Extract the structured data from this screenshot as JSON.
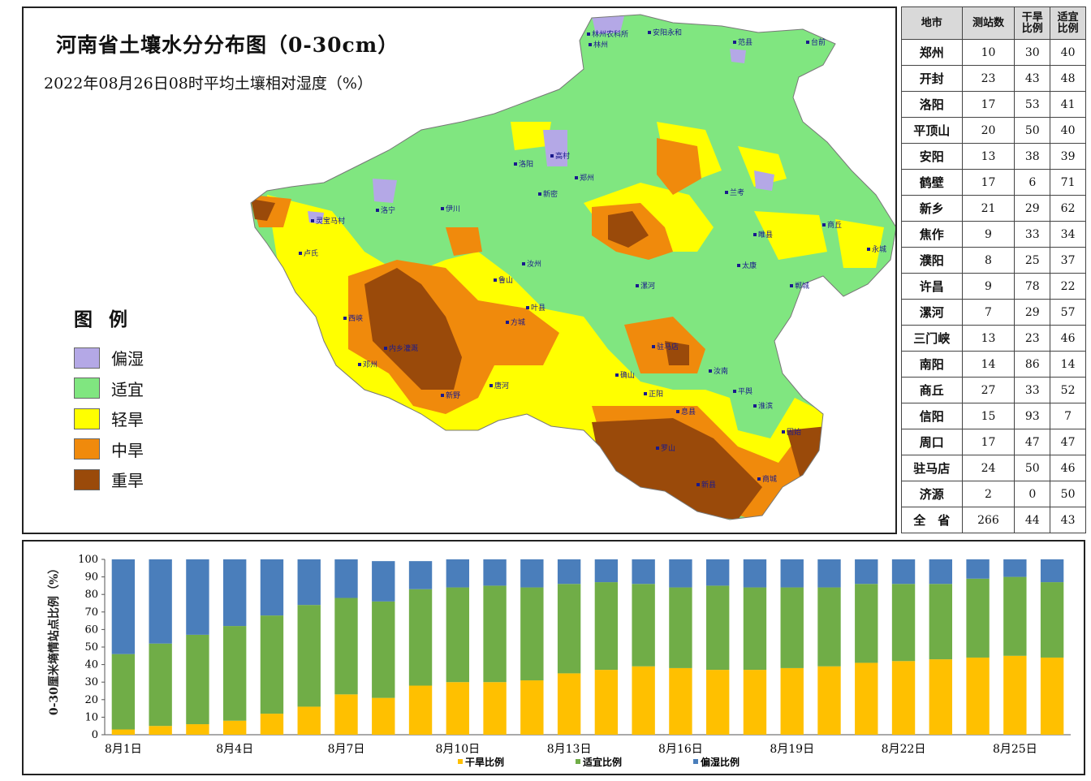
{
  "map": {
    "title": "河南省土壤水分分布图（0-30cm）",
    "subtitle": "2022年08月26日08时平均土壤相对湿度（%）",
    "legend_title": "图 例",
    "legend": [
      {
        "label": "偏湿",
        "color": "#b4a8e6"
      },
      {
        "label": "适宜",
        "color": "#80e680"
      },
      {
        "label": "轻旱",
        "color": "#ffff00"
      },
      {
        "label": "中旱",
        "color": "#f08a0c"
      },
      {
        "label": "重旱",
        "color": "#9a4a0a"
      }
    ],
    "place_labels": [
      {
        "text": "安阳永和"
      },
      {
        "text": "林州农科所"
      },
      {
        "text": "林州"
      },
      {
        "text": "台前"
      },
      {
        "text": "范县"
      },
      {
        "text": "洛阳"
      },
      {
        "text": "高村"
      },
      {
        "text": "新密"
      },
      {
        "text": "郑州"
      },
      {
        "text": "伊川"
      },
      {
        "text": "卢氏"
      },
      {
        "text": "灵宝马村"
      },
      {
        "text": "西峡"
      },
      {
        "text": "内乡灌溉"
      },
      {
        "text": "邓州"
      },
      {
        "text": "新野"
      },
      {
        "text": "唐河"
      },
      {
        "text": "方城"
      },
      {
        "text": "叶县"
      },
      {
        "text": "漯河"
      },
      {
        "text": "驻马店"
      },
      {
        "text": "确山"
      },
      {
        "text": "正阳"
      },
      {
        "text": "息县"
      },
      {
        "text": "罗山"
      },
      {
        "text": "新县"
      },
      {
        "text": "商城"
      },
      {
        "text": "固始"
      },
      {
        "text": "淮滨"
      },
      {
        "text": "郸城"
      },
      {
        "text": "永城"
      },
      {
        "text": "商丘"
      },
      {
        "text": "睢县"
      },
      {
        "text": "兰考"
      },
      {
        "text": "太康"
      },
      {
        "text": "汝南"
      },
      {
        "text": "平舆"
      },
      {
        "text": "鲁山"
      },
      {
        "text": "汝州"
      },
      {
        "text": "洛宁"
      }
    ]
  },
  "table": {
    "headers": [
      "地市",
      "测站数",
      "干旱\n比例",
      "适宜\n比例"
    ],
    "rows": [
      {
        "city": "郑州",
        "stations": "10",
        "dry": "30",
        "suit": "40"
      },
      {
        "city": "开封",
        "stations": "23",
        "dry": "43",
        "suit": "48"
      },
      {
        "city": "洛阳",
        "stations": "17",
        "dry": "53",
        "suit": "41"
      },
      {
        "city": "平顶山",
        "stations": "20",
        "dry": "50",
        "suit": "40"
      },
      {
        "city": "安阳",
        "stations": "13",
        "dry": "38",
        "suit": "39"
      },
      {
        "city": "鹤壁",
        "stations": "17",
        "dry": "6",
        "suit": "71"
      },
      {
        "city": "新乡",
        "stations": "21",
        "dry": "29",
        "suit": "62"
      },
      {
        "city": "焦作",
        "stations": "9",
        "dry": "33",
        "suit": "34"
      },
      {
        "city": "濮阳",
        "stations": "8",
        "dry": "25",
        "suit": "37"
      },
      {
        "city": "许昌",
        "stations": "9",
        "dry": "78",
        "suit": "22"
      },
      {
        "city": "漯河",
        "stations": "7",
        "dry": "29",
        "suit": "57"
      },
      {
        "city": "三门峡",
        "stations": "13",
        "dry": "23",
        "suit": "46"
      },
      {
        "city": "南阳",
        "stations": "14",
        "dry": "86",
        "suit": "14"
      },
      {
        "city": "商丘",
        "stations": "27",
        "dry": "33",
        "suit": "52"
      },
      {
        "city": "信阳",
        "stations": "15",
        "dry": "93",
        "suit": "7"
      },
      {
        "city": "周口",
        "stations": "17",
        "dry": "47",
        "suit": "47"
      },
      {
        "city": "驻马店",
        "stations": "24",
        "dry": "50",
        "suit": "46"
      },
      {
        "city": "济源",
        "stations": "2",
        "dry": "0",
        "suit": "50"
      },
      {
        "city": "全　省",
        "stations": "266",
        "dry": "44",
        "suit": "43"
      }
    ]
  },
  "chart_data": {
    "type": "bar",
    "stacked": true,
    "ylabel": "0-30厘米墒情站点比例（%）",
    "ylim": [
      0,
      100
    ],
    "yticks": [
      0,
      10,
      20,
      30,
      40,
      50,
      60,
      70,
      80,
      90,
      100
    ],
    "x_tick_labels": [
      "8月1日",
      "8月4日",
      "8月7日",
      "8月10日",
      "8月13日",
      "8月16日",
      "8月19日",
      "8月22日",
      "8月25日"
    ],
    "x_tick_indices": [
      0,
      3,
      6,
      9,
      12,
      15,
      18,
      21,
      24
    ],
    "categories": [
      "8月1日",
      "8月2日",
      "8月3日",
      "8月4日",
      "8月5日",
      "8月6日",
      "8月7日",
      "8月8日",
      "8月9日",
      "8月10日",
      "8月11日",
      "8月12日",
      "8月13日",
      "8月14日",
      "8月15日",
      "8月16日",
      "8月17日",
      "8月18日",
      "8月19日",
      "8月20日",
      "8月21日",
      "8月22日",
      "8月23日",
      "8月24日",
      "8月25日",
      "8月26日"
    ],
    "series": [
      {
        "name": "干旱比例",
        "color": "#ffc000",
        "values": [
          3,
          5,
          6,
          8,
          12,
          16,
          23,
          21,
          28,
          30,
          30,
          31,
          35,
          37,
          39,
          38,
          37,
          37,
          38,
          39,
          41,
          42,
          43,
          44,
          45,
          44
        ]
      },
      {
        "name": "适宜比例",
        "color": "#70ad47",
        "values": [
          43,
          47,
          51,
          54,
          56,
          58,
          55,
          55,
          55,
          54,
          55,
          53,
          51,
          50,
          47,
          46,
          48,
          47,
          46,
          45,
          45,
          44,
          43,
          45,
          45,
          43
        ]
      },
      {
        "name": "偏湿比例",
        "color": "#4a7ebb",
        "values": [
          54,
          48,
          43,
          38,
          32,
          26,
          22,
          23,
          16,
          16,
          15,
          16,
          14,
          13,
          14,
          16,
          15,
          16,
          16,
          16,
          14,
          14,
          14,
          11,
          10,
          13
        ]
      }
    ],
    "legend_position": "bottom"
  }
}
